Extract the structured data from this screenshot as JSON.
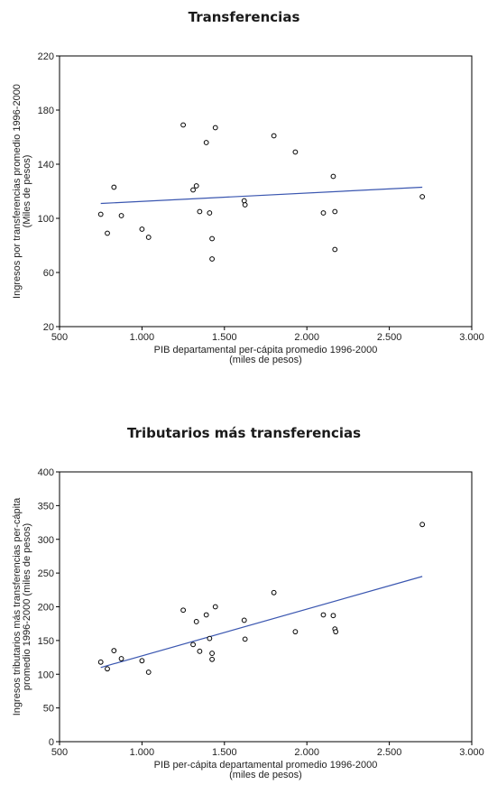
{
  "chart_data": [
    {
      "type": "scatter",
      "title": "Transferencias",
      "xlabel": [
        "PIB departamental per-cápita promedio 1996-2000",
        "(miles de pesos)"
      ],
      "ylabel": [
        "Ingresos por transferencias promedio 1996-2000",
        "(Miles de pesos)"
      ],
      "xlim": [
        500,
        3000
      ],
      "ylim": [
        20,
        220
      ],
      "xticks": [
        500,
        1000,
        1500,
        2000,
        2500,
        3000
      ],
      "xtick_labels": [
        "500",
        "1.000",
        "1.500",
        "2.000",
        "2.500",
        "3.000"
      ],
      "yticks": [
        20,
        60,
        100,
        140,
        180,
        220
      ],
      "ytick_labels": [
        "20",
        "60",
        "100",
        "140",
        "180",
        "220"
      ],
      "grid": false,
      "trendline": {
        "x": [
          750,
          2700
        ],
        "y": [
          111,
          123
        ]
      },
      "points": [
        {
          "x": 750,
          "y": 103
        },
        {
          "x": 790,
          "y": 89
        },
        {
          "x": 830,
          "y": 123
        },
        {
          "x": 875,
          "y": 102
        },
        {
          "x": 1000,
          "y": 92
        },
        {
          "x": 1040,
          "y": 86
        },
        {
          "x": 1250,
          "y": 169
        },
        {
          "x": 1310,
          "y": 121
        },
        {
          "x": 1330,
          "y": 124
        },
        {
          "x": 1350,
          "y": 105
        },
        {
          "x": 1390,
          "y": 156
        },
        {
          "x": 1410,
          "y": 104
        },
        {
          "x": 1425,
          "y": 85
        },
        {
          "x": 1425,
          "y": 70
        },
        {
          "x": 1445,
          "y": 167
        },
        {
          "x": 1620,
          "y": 113
        },
        {
          "x": 1625,
          "y": 110
        },
        {
          "x": 1800,
          "y": 161
        },
        {
          "x": 1930,
          "y": 149
        },
        {
          "x": 2100,
          "y": 104
        },
        {
          "x": 2160,
          "y": 131
        },
        {
          "x": 2170,
          "y": 105
        },
        {
          "x": 2170,
          "y": 77
        },
        {
          "x": 2700,
          "y": 116
        }
      ]
    },
    {
      "type": "scatter",
      "title": "Tributarios más transferencias",
      "xlabel": [
        "PIB per-cápita departamental promedio 1996-2000",
        "(miles de pesos)"
      ],
      "ylabel": [
        "Ingresos tributarios más transferencias per-cápita",
        "promedio 1996-2000 (miles de pesos)"
      ],
      "xlim": [
        500,
        3000
      ],
      "ylim": [
        0,
        400
      ],
      "xticks": [
        500,
        1000,
        1500,
        2000,
        2500,
        3000
      ],
      "xtick_labels": [
        "500",
        "1.000",
        "1.500",
        "2.000",
        "2.500",
        "3.000"
      ],
      "yticks": [
        0,
        50,
        100,
        150,
        200,
        250,
        300,
        350,
        400
      ],
      "ytick_labels": [
        "0",
        "50",
        "100",
        "150",
        "200",
        "250",
        "300",
        "350",
        "400"
      ],
      "grid": false,
      "trendline": {
        "x": [
          750,
          2700
        ],
        "y": [
          110,
          245
        ]
      },
      "points": [
        {
          "x": 750,
          "y": 118
        },
        {
          "x": 790,
          "y": 108
        },
        {
          "x": 830,
          "y": 135
        },
        {
          "x": 875,
          "y": 123
        },
        {
          "x": 1000,
          "y": 120
        },
        {
          "x": 1040,
          "y": 103
        },
        {
          "x": 1250,
          "y": 195
        },
        {
          "x": 1310,
          "y": 144
        },
        {
          "x": 1330,
          "y": 178
        },
        {
          "x": 1350,
          "y": 134
        },
        {
          "x": 1390,
          "y": 188
        },
        {
          "x": 1410,
          "y": 153
        },
        {
          "x": 1425,
          "y": 131
        },
        {
          "x": 1425,
          "y": 122
        },
        {
          "x": 1445,
          "y": 200
        },
        {
          "x": 1620,
          "y": 180
        },
        {
          "x": 1625,
          "y": 152
        },
        {
          "x": 1800,
          "y": 221
        },
        {
          "x": 1930,
          "y": 163
        },
        {
          "x": 2100,
          "y": 188
        },
        {
          "x": 2160,
          "y": 187
        },
        {
          "x": 2170,
          "y": 167
        },
        {
          "x": 2175,
          "y": 163
        },
        {
          "x": 2700,
          "y": 322
        }
      ]
    }
  ]
}
